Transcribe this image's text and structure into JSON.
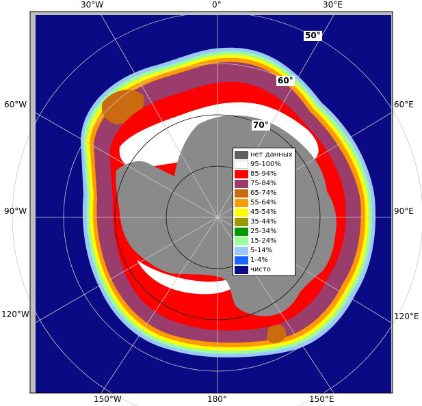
{
  "map": {
    "colors": {
      "ocean": "#0a0a84",
      "land": "#8a8a8a",
      "frame": "#bdbdbd",
      "border": "#000000",
      "grid": "#c8c8c8"
    }
  },
  "edge_labels": {
    "top": [
      "30°W",
      "0°",
      "30°E"
    ],
    "bottom": [
      "150°W",
      "180°",
      "150°E"
    ],
    "left": [
      "60°W",
      "90°W",
      "120°W"
    ],
    "right": [
      "60°E",
      "90°E",
      "120°E"
    ]
  },
  "lat_labels": [
    "50°",
    "60°",
    "70°"
  ],
  "legend": [
    {
      "label": "нет данных",
      "color": "#606060"
    },
    {
      "label": "95-100%",
      "color": "#ffffff"
    },
    {
      "label": "85-94%",
      "color": "#ff0000"
    },
    {
      "label": "75-84%",
      "color": "#9a3c6c"
    },
    {
      "label": "65-74%",
      "color": "#cc6a10"
    },
    {
      "label": "55-64%",
      "color": "#ff9a00"
    },
    {
      "label": "45-54%",
      "color": "#ffff00"
    },
    {
      "label": "35-44%",
      "color": "#9a9a00"
    },
    {
      "label": "25-34%",
      "color": "#009a00"
    },
    {
      "label": "15-24%",
      "color": "#9aff9a"
    },
    {
      "label": "5-14%",
      "color": "#9ac8ff"
    },
    {
      "label": "1-4%",
      "color": "#1e64ff"
    },
    {
      "label": "чисто",
      "color": "#0a0a84"
    }
  ]
}
